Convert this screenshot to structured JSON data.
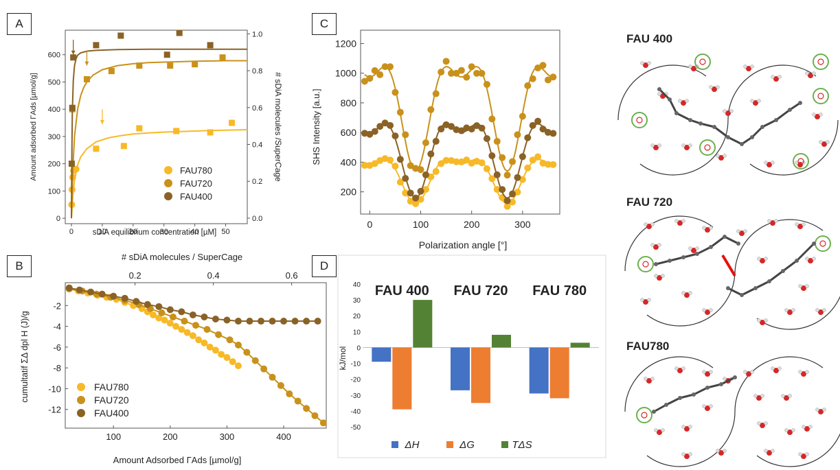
{
  "colors": {
    "FAU780": "#f7b928",
    "FAU720": "#c9911b",
    "FAU400": "#8a6226",
    "dH": "#4472c4",
    "dG": "#ed7d31",
    "TdS": "#548235"
  },
  "panels": {
    "A": "A",
    "B": "B",
    "C": "C",
    "D": "D"
  },
  "chart_data": [
    {
      "id": "A",
      "type": "scatter",
      "xlabel": "sDiA equilibrium concentration [µM]",
      "ylabel": "Amount adsorbed  ΓAds [µmol/g]",
      "y2label": "# sDiA molecules /SuperCage",
      "xlim": [
        -2,
        57
      ],
      "ylim": [
        -20,
        690
      ],
      "y2lim": [
        -0.03,
        1.02
      ],
      "xticks": [
        0,
        10,
        20,
        30,
        40,
        50
      ],
      "yticks": [
        0,
        100,
        200,
        300,
        400,
        500,
        600
      ],
      "y2ticks": [
        0.0,
        0.2,
        0.4,
        0.6,
        0.8,
        1.0
      ],
      "legend": "bottom-right",
      "series": [
        {
          "name": "FAU780",
          "marker": "circle",
          "x": [
            0.1,
            0.2,
            0.4,
            0.7,
            1.5
          ],
          "y": [
            50,
            105,
            150,
            175,
            180
          ],
          "fit_x": [
            0,
            0.5,
            1,
            2,
            3,
            5,
            8,
            12,
            16,
            20,
            25,
            30,
            35,
            40,
            45,
            50,
            57
          ],
          "fit_y": [
            0,
            85,
            140,
            195,
            225,
            255,
            280,
            295,
            303,
            309,
            313,
            316,
            318,
            320,
            322,
            323,
            325
          ]
        },
        {
          "name": "FAU780",
          "marker": "square",
          "x": [
            8,
            17,
            22,
            34,
            45,
            52
          ],
          "y": [
            255,
            265,
            330,
            320,
            315,
            350
          ],
          "legend": false
        },
        {
          "name": "FAU720",
          "marker": "square",
          "x": [
            0.3,
            5,
            13,
            22,
            32,
            40,
            49
          ],
          "y": [
            400,
            510,
            540,
            560,
            560,
            565,
            590
          ],
          "fit_x": [
            0,
            0.5,
            1,
            2,
            3,
            4,
            5,
            7,
            10,
            15,
            20,
            25,
            30,
            40,
            50,
            57
          ],
          "fit_y": [
            0,
            190,
            300,
            400,
            450,
            480,
            500,
            525,
            545,
            560,
            567,
            571,
            573,
            576,
            578,
            578
          ]
        },
        {
          "name": "FAU400",
          "marker": "square",
          "x": [
            0.1,
            0.3,
            0.6,
            8,
            16,
            31,
            35,
            45
          ],
          "y": [
            200,
            405,
            590,
            635,
            670,
            600,
            680,
            635
          ],
          "fit_x": [
            0,
            0.15,
            0.3,
            0.6,
            1,
            1.5,
            2,
            3,
            5,
            8,
            15,
            25,
            40,
            57
          ],
          "fit_y": [
            0,
            250,
            390,
            505,
            560,
            585,
            598,
            607,
            613,
            616,
            619,
            620,
            620,
            620
          ]
        }
      ]
    },
    {
      "id": "B",
      "type": "scatter",
      "xlabel": "Amount Adsorbed  ΓAds  [µmol/g]",
      "ylabel": "cumultatif  ΣΔ  dpl H (J)/g",
      "x2label": "# sDiA molecules / SuperCage",
      "xlim": [
        15,
        475
      ],
      "ylim": [
        -13.8,
        0.2
      ],
      "xticks": [
        100,
        200,
        300,
        400
      ],
      "yticks": [
        -2,
        -4,
        -6,
        -8,
        -10,
        -12
      ],
      "x2ticks": [
        0.2,
        0.4,
        0.6
      ],
      "legend": "bottom-left",
      "series": [
        {
          "name": "FAU780",
          "x": [
            22,
            38,
            55,
            72,
            88,
            105,
            120,
            135,
            150,
            160,
            170,
            180,
            190,
            200,
            210,
            220,
            230,
            240,
            250,
            260,
            270,
            280,
            290,
            300,
            310,
            320
          ],
          "y": [
            -0.4,
            -0.6,
            -0.8,
            -1.0,
            -1.2,
            -1.4,
            -1.7,
            -2.0,
            -2.3,
            -2.6,
            -2.9,
            -3.2,
            -3.4,
            -3.7,
            -4.0,
            -4.3,
            -4.6,
            -4.9,
            -5.3,
            -5.6,
            -6.0,
            -6.3,
            -6.7,
            -7.0,
            -7.4,
            -7.8
          ]
        },
        {
          "name": "FAU720",
          "x": [
            22,
            45,
            70,
            95,
            120,
            145,
            165,
            185,
            205,
            225,
            245,
            265,
            285,
            305,
            320,
            335,
            350,
            365,
            380,
            395,
            410,
            425,
            440,
            455,
            470
          ],
          "y": [
            -0.4,
            -0.6,
            -0.9,
            -1.2,
            -1.5,
            -1.9,
            -2.3,
            -2.7,
            -3.1,
            -3.5,
            -3.9,
            -4.3,
            -4.8,
            -5.3,
            -5.8,
            -6.5,
            -7.3,
            -8.1,
            -8.9,
            -9.7,
            -10.5,
            -11.2,
            -11.9,
            -12.6,
            -13.3
          ]
        },
        {
          "name": "FAU400",
          "x": [
            22,
            40,
            60,
            80,
            100,
            120,
            140,
            160,
            180,
            200,
            220,
            240,
            260,
            280,
            300,
            320,
            340,
            360,
            380,
            400,
            420,
            440,
            460
          ],
          "y": [
            -0.3,
            -0.5,
            -0.7,
            -0.9,
            -1.1,
            -1.3,
            -1.6,
            -1.9,
            -2.1,
            -2.4,
            -2.6,
            -2.9,
            -3.1,
            -3.3,
            -3.4,
            -3.5,
            -3.5,
            -3.5,
            -3.5,
            -3.5,
            -3.5,
            -3.5,
            -3.5
          ]
        }
      ]
    },
    {
      "id": "C",
      "type": "scatter",
      "xlabel": "Polarization angle [°]",
      "ylabel": "SHS Intensity [a.u.]",
      "xlim": [
        -18,
        373
      ],
      "ylim": [
        50,
        1290
      ],
      "xticks": [
        0,
        100,
        200,
        300
      ],
      "yticks": [
        200,
        400,
        600,
        800,
        1000,
        1200
      ],
      "series": [
        {
          "name": "FAU780",
          "base": 250,
          "amp": 160,
          "step": 10
        },
        {
          "name": "FAU720",
          "base": 700,
          "amp": 520,
          "step": 10
        },
        {
          "name": "FAU400",
          "base": 390,
          "amp": 270,
          "step": 10
        }
      ]
    },
    {
      "id": "D",
      "type": "bar",
      "ylabel": "kJ/mol",
      "ylim": [
        -50,
        40
      ],
      "yticks": [
        40,
        30,
        20,
        10,
        0,
        -10,
        -20,
        -30,
        -40,
        -50
      ],
      "categories": [
        "FAU 400",
        "FAU 720",
        "FAU 780"
      ],
      "series": [
        {
          "name": "ΔH",
          "values": [
            -9,
            -27,
            -29
          ]
        },
        {
          "name": "ΔG",
          "values": [
            -39,
            -35,
            -32
          ]
        },
        {
          "name": "TΔS",
          "values": [
            30,
            8,
            3
          ]
        }
      ],
      "legend": "bottom"
    }
  ],
  "molecules": {
    "titles": [
      "FAU 400",
      "FAU 720",
      "FAU780"
    ]
  }
}
